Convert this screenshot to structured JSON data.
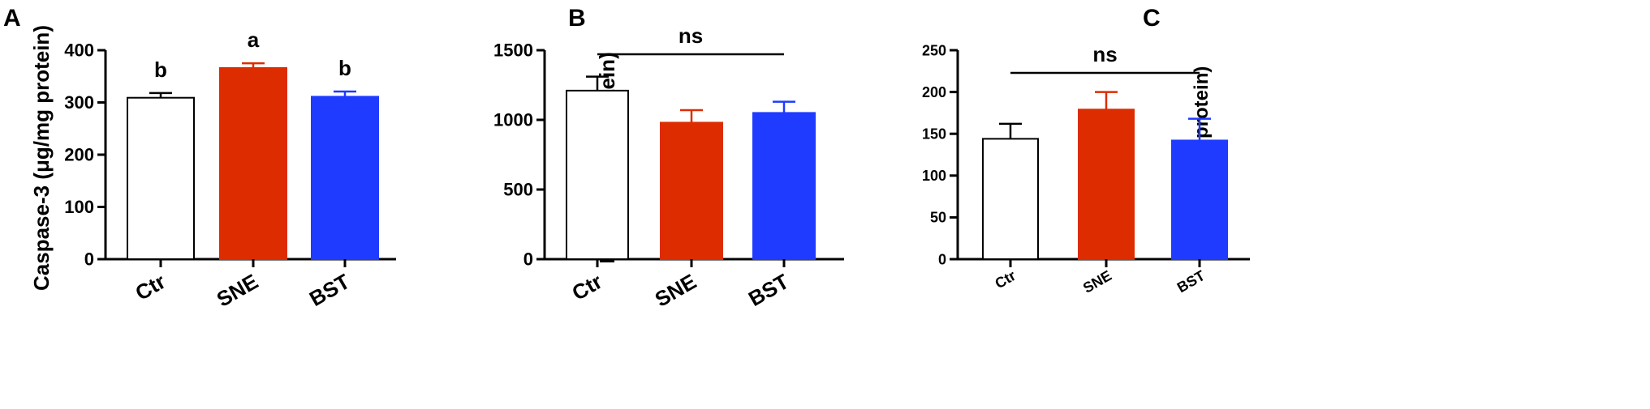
{
  "chart_data": [
    {
      "type": "bar",
      "panel": "A",
      "ylabel": "Caspase-3 (μg/mg protein)",
      "categories": [
        "Ctr",
        "SNE",
        "BST"
      ],
      "values": [
        309,
        366,
        311
      ],
      "errors": [
        9,
        9,
        10
      ],
      "colors": [
        "#ffffff",
        "#dd2c00",
        "#1f3bff"
      ],
      "ylim": [
        0,
        400
      ],
      "yticks": [
        0,
        100,
        200,
        300,
        400
      ],
      "annotations": [
        "b",
        "a",
        "b"
      ],
      "bracket_label": ""
    },
    {
      "type": "bar",
      "panel": "B",
      "ylabel": "Bcl-2 (μg/mg protein)",
      "categories": [
        "Ctr",
        "SNE",
        "BST"
      ],
      "values": [
        1210,
        980,
        1050
      ],
      "errors": [
        100,
        90,
        80
      ],
      "colors": [
        "#ffffff",
        "#dd2c00",
        "#1f3bff"
      ],
      "ylim": [
        0,
        1500
      ],
      "yticks": [
        0,
        500,
        1000,
        1500
      ],
      "annotations": [],
      "bracket_label": "ns"
    },
    {
      "type": "bar",
      "panel": "C",
      "ylabel": "Bax (μg/mg protein)",
      "categories": [
        "Ctr",
        "SNE",
        "BST"
      ],
      "values": [
        144,
        179,
        142
      ],
      "errors": [
        18,
        21,
        26
      ],
      "colors": [
        "#ffffff",
        "#dd2c00",
        "#1f3bff"
      ],
      "ylim": [
        0,
        250
      ],
      "yticks": [
        0,
        50,
        100,
        150,
        200,
        250
      ],
      "annotations": [],
      "bracket_label": "ns"
    }
  ]
}
